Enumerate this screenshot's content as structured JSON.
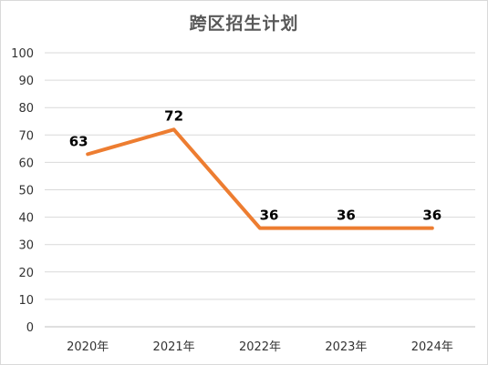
{
  "chart_data": {
    "type": "line",
    "title": "跨区招生计划",
    "categories": [
      "2020年",
      "2021年",
      "2022年",
      "2023年",
      "2024年"
    ],
    "series": [
      {
        "values": [
          63,
          72,
          36,
          36,
          36
        ],
        "color": "#ed7d31"
      }
    ],
    "data_labels": [
      "63",
      "72",
      "36",
      "36",
      "36"
    ],
    "ylim": [
      0,
      100
    ],
    "y_ticks": [
      0,
      10,
      20,
      30,
      40,
      50,
      60,
      70,
      80,
      90,
      100
    ],
    "grid": true,
    "legend": "none",
    "colors": {
      "grid": "#d9d9d9",
      "axis": "#bfbfbf",
      "title": "#595959"
    }
  }
}
